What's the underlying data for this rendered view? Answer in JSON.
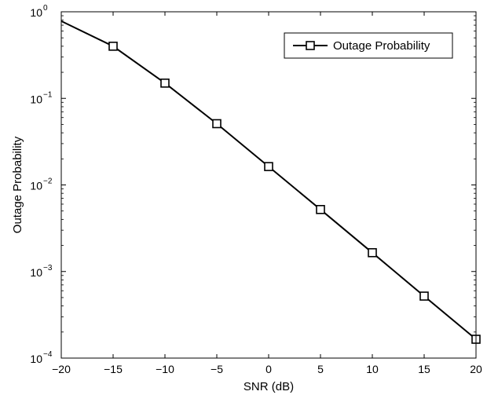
{
  "chart_data": {
    "type": "line",
    "title": "",
    "xlabel": "SNR (dB)",
    "ylabel": "Outage Probability",
    "xlim": [
      -20,
      20
    ],
    "ylim": [
      0.0001,
      1
    ],
    "yscale": "log",
    "xticks": [
      -20,
      -15,
      -10,
      -5,
      0,
      5,
      10,
      15,
      20
    ],
    "xtick_labels": [
      "−20",
      "−15",
      "−10",
      "−5",
      "0",
      "5",
      "10",
      "15",
      "20"
    ],
    "yticks": [
      0.0001,
      0.001,
      0.01,
      0.1,
      1
    ],
    "ytick_labels": [
      {
        "base": "10",
        "exp": "−4"
      },
      {
        "base": "10",
        "exp": "−3"
      },
      {
        "base": "10",
        "exp": "−2"
      },
      {
        "base": "10",
        "exp": "−1"
      },
      {
        "base": "10",
        "exp": "0"
      }
    ],
    "grid": false,
    "legend": {
      "position": "top-right"
    },
    "series": [
      {
        "name": "Outage Probability",
        "color": "#000000",
        "marker": "square",
        "line_points": {
          "x": [
            -20,
            -15,
            -10,
            -5,
            0,
            5,
            10,
            15,
            20
          ],
          "y": [
            0.78,
            0.4,
            0.15,
            0.051,
            0.0163,
            0.0052,
            0.00165,
            0.00052,
            0.000165
          ]
        },
        "markers": {
          "x": [
            -15,
            -10,
            -5,
            0,
            5,
            10,
            15,
            20
          ],
          "y": [
            0.4,
            0.15,
            0.051,
            0.0163,
            0.0052,
            0.00165,
            0.00052,
            0.000165
          ]
        }
      }
    ]
  }
}
